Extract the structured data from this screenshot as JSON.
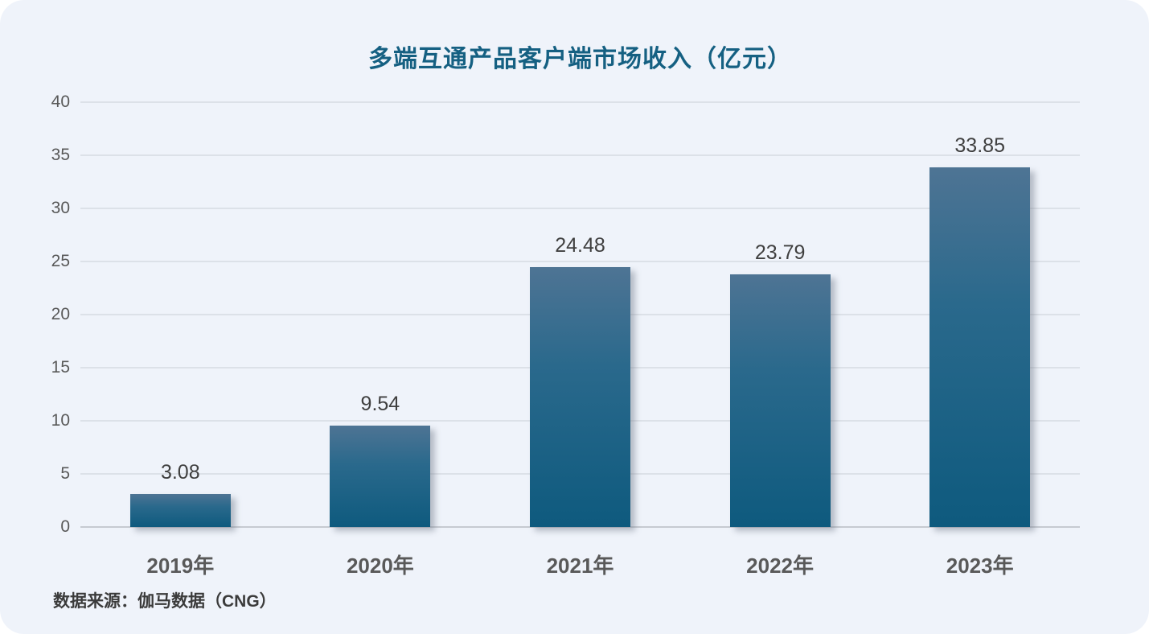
{
  "title": "多端互通产品客户端市场收入（亿元）",
  "source_note": "数据来源：伽马数据（CNG）",
  "colors": {
    "background": "#eff3fa",
    "title": "#156082",
    "bar_gradient_top": "#4e7494",
    "bar_gradient_bottom": "#0e5a7e",
    "gridline": "#dce1e8",
    "axis_line": "#c6cad1",
    "value_label": "#3f3f3f",
    "axis_label": "#595959"
  },
  "chart_data": {
    "type": "bar",
    "title": "多端互通产品客户端市场收入（亿元）",
    "categories": [
      "2019年",
      "2020年",
      "2021年",
      "2022年",
      "2023年"
    ],
    "values": [
      3.08,
      9.54,
      24.48,
      23.79,
      33.85
    ],
    "value_labels": [
      "3.08",
      "9.54",
      "24.48",
      "23.79",
      "33.85"
    ],
    "xlabel": "",
    "ylabel": "",
    "ylim": [
      0,
      40
    ],
    "yticks": [
      0,
      5,
      10,
      15,
      20,
      25,
      30,
      35,
      40
    ],
    "grid": true,
    "legend_position": "none",
    "source": "数据来源：伽马数据（CNG）"
  }
}
